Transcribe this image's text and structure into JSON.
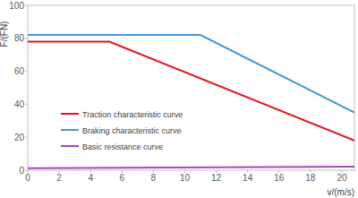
{
  "chart_data": {
    "type": "line",
    "x_label": "v/(m/s)",
    "y_label": "F/(FN)",
    "xlim": [
      0,
      20.8
    ],
    "ylim": [
      0,
      100
    ],
    "xticks": [
      0,
      2,
      4,
      6,
      8,
      10,
      12,
      14,
      16,
      18,
      20
    ],
    "yticks": [
      0,
      20,
      40,
      60,
      80,
      100
    ],
    "grid": false,
    "legend": "lower left",
    "series": [
      {
        "name": "Traction characteristic curve",
        "color": "#e3141d",
        "x": [
          0,
          5.2,
          20.8
        ],
        "values": [
          78,
          78,
          18
        ]
      },
      {
        "name": "Braking characteristic curve",
        "color": "#3d9bdb",
        "x": [
          0,
          11,
          20.8
        ],
        "values": [
          82,
          82,
          35
        ]
      },
      {
        "name": "Basic resistance curve",
        "color": "#b23fc4",
        "x": [
          0,
          20.8
        ],
        "values": [
          1.2,
          2.2
        ]
      }
    ]
  }
}
